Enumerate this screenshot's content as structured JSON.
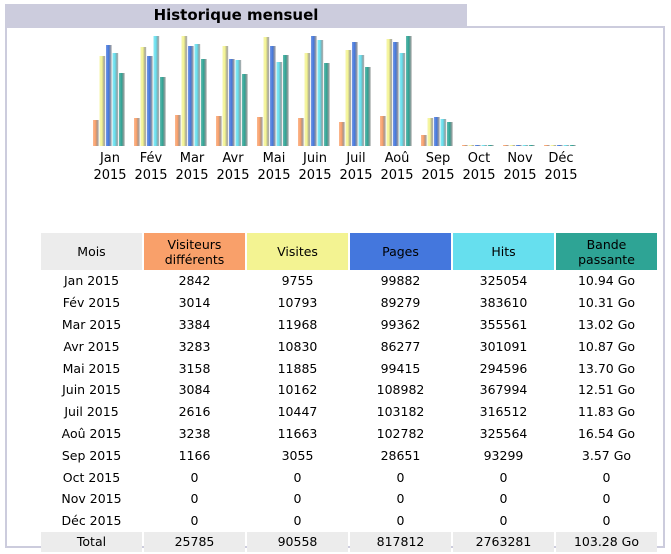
{
  "title": "Historique mensuel",
  "colors": {
    "visitors": "#f9a06a",
    "visits": "#f3f392",
    "pages": "#4477dd",
    "hits": "#66dfee",
    "bandwidth": "#2ea495"
  },
  "chart_data": {
    "type": "bar",
    "categories": [
      "Jan 2015",
      "Fév 2015",
      "Mar 2015",
      "Avr 2015",
      "Mai 2015",
      "Juin 2015",
      "Juil 2015",
      "Aoû 2015",
      "Sep 2015",
      "Oct 2015",
      "Nov 2015",
      "Déc 2015"
    ],
    "month_labels": [
      {
        "m": "Jan",
        "y": "2015"
      },
      {
        "m": "Fév",
        "y": "2015"
      },
      {
        "m": "Mar",
        "y": "2015"
      },
      {
        "m": "Avr",
        "y": "2015"
      },
      {
        "m": "Mai",
        "y": "2015"
      },
      {
        "m": "Juin",
        "y": "2015"
      },
      {
        "m": "Juil",
        "y": "2015"
      },
      {
        "m": "Aoû",
        "y": "2015"
      },
      {
        "m": "Sep",
        "y": "2015"
      },
      {
        "m": "Oct",
        "y": "2015"
      },
      {
        "m": "Nov",
        "y": "2015"
      },
      {
        "m": "Déc",
        "y": "2015"
      }
    ],
    "series": [
      {
        "key": "visitors",
        "values": [
          2842,
          3014,
          3384,
          3283,
          3158,
          3084,
          2616,
          3238,
          1166,
          0,
          0,
          0
        ]
      },
      {
        "key": "visits",
        "values": [
          9755,
          10793,
          11968,
          10830,
          11885,
          10162,
          10447,
          11663,
          3055,
          0,
          0,
          0
        ]
      },
      {
        "key": "pages",
        "values": [
          99882,
          89279,
          99362,
          86277,
          99415,
          108982,
          103182,
          102782,
          28651,
          0,
          0,
          0
        ]
      },
      {
        "key": "hits",
        "values": [
          325054,
          383610,
          355561,
          301091,
          294596,
          367994,
          316512,
          325564,
          93299,
          0,
          0,
          0
        ]
      },
      {
        "key": "bandwidth",
        "values": [
          10.94,
          10.31,
          13.02,
          10.87,
          13.7,
          12.51,
          11.83,
          16.54,
          3.57,
          0,
          0,
          0
        ]
      }
    ]
  },
  "table": {
    "headers": {
      "mois": "Mois",
      "visitors": "Visiteurs différents",
      "visits": "Visites",
      "pages": "Pages",
      "hits": "Hits",
      "bandwidth": "Bande passante"
    },
    "rows": [
      [
        "Jan 2015",
        "2842",
        "9755",
        "99882",
        "325054",
        "10.94 Go"
      ],
      [
        "Fév 2015",
        "3014",
        "10793",
        "89279",
        "383610",
        "10.31 Go"
      ],
      [
        "Mar 2015",
        "3384",
        "11968",
        "99362",
        "355561",
        "13.02 Go"
      ],
      [
        "Avr 2015",
        "3283",
        "10830",
        "86277",
        "301091",
        "10.87 Go"
      ],
      [
        "Mai 2015",
        "3158",
        "11885",
        "99415",
        "294596",
        "13.70 Go"
      ],
      [
        "Juin 2015",
        "3084",
        "10162",
        "108982",
        "367994",
        "12.51 Go"
      ],
      [
        "Juil 2015",
        "2616",
        "10447",
        "103182",
        "316512",
        "11.83 Go"
      ],
      [
        "Aoû 2015",
        "3238",
        "11663",
        "102782",
        "325564",
        "16.54 Go"
      ],
      [
        "Sep 2015",
        "1166",
        "3055",
        "28651",
        "93299",
        "3.57 Go"
      ],
      [
        "Oct 2015",
        "0",
        "0",
        "0",
        "0",
        "0"
      ],
      [
        "Nov 2015",
        "0",
        "0",
        "0",
        "0",
        "0"
      ],
      [
        "Déc 2015",
        "0",
        "0",
        "0",
        "0",
        "0"
      ]
    ],
    "total": [
      "Total",
      "25785",
      "90558",
      "817812",
      "2763281",
      "103.28 Go"
    ]
  }
}
